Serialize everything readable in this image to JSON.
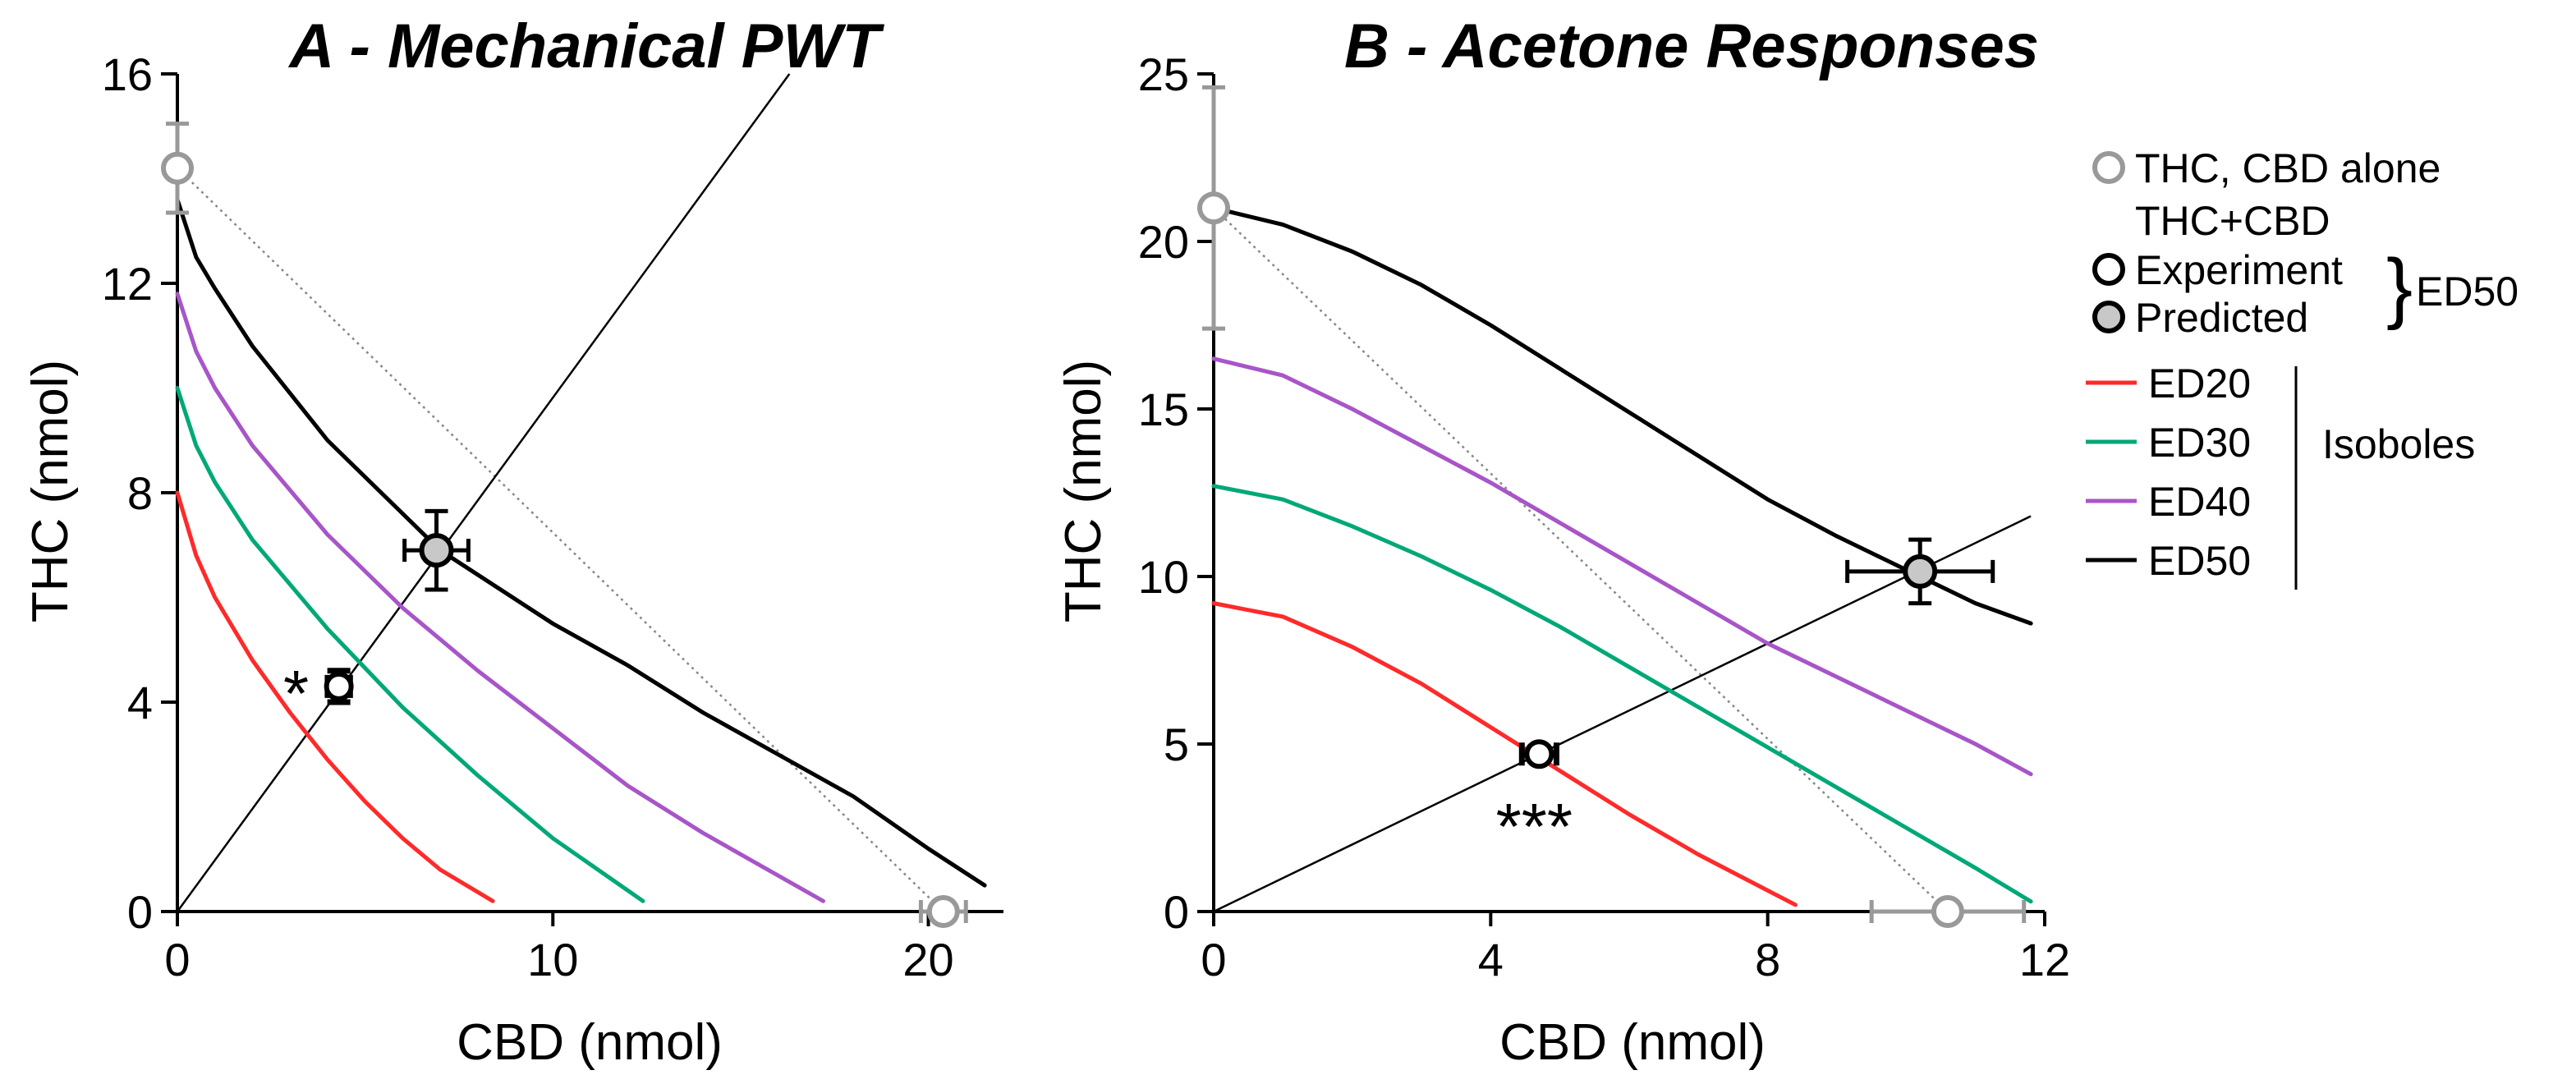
{
  "chart_data": [
    {
      "type": "line",
      "title": "A - Mechanical PWT",
      "xlabel": "CBD (nmol)",
      "ylabel": "THC (nmol)",
      "xlim": [
        0,
        22
      ],
      "ylim": [
        0,
        16
      ],
      "xticks": [
        0,
        10,
        20
      ],
      "yticks": [
        0,
        4,
        8,
        12,
        16
      ],
      "grid": false,
      "series": [
        {
          "name": "ED20",
          "color": "#ff2a2a",
          "x": [
            0,
            0.5,
            1,
            2,
            3,
            4,
            5,
            6,
            7,
            8.4
          ],
          "y": [
            8.0,
            6.8,
            6.0,
            4.8,
            3.8,
            2.9,
            2.1,
            1.4,
            0.8,
            0.2
          ]
        },
        {
          "name": "ED30",
          "color": "#00a878",
          "x": [
            0,
            0.5,
            1,
            2,
            4,
            6,
            8,
            10,
            12.4
          ],
          "y": [
            10.0,
            8.9,
            8.2,
            7.1,
            5.4,
            3.9,
            2.6,
            1.4,
            0.2
          ]
        },
        {
          "name": "ED40",
          "color": "#a855c8",
          "x": [
            0,
            0.5,
            1,
            2,
            4,
            6,
            8,
            10,
            12,
            14,
            17.2
          ],
          "y": [
            11.8,
            10.7,
            10.0,
            8.9,
            7.2,
            5.8,
            4.6,
            3.5,
            2.4,
            1.5,
            0.2
          ]
        },
        {
          "name": "ED50",
          "color": "#000000",
          "x": [
            0,
            0.5,
            1,
            2,
            4,
            6,
            7,
            10,
            12,
            14,
            16,
            18,
            20,
            21.5
          ],
          "y": [
            13.6,
            12.5,
            11.9,
            10.8,
            9.0,
            7.6,
            6.9,
            5.5,
            4.7,
            3.8,
            3.0,
            2.2,
            1.2,
            0.5
          ]
        }
      ],
      "additivity_line": {
        "x": [
          20.4,
          0
        ],
        "y": [
          0,
          14.2
        ]
      },
      "combination_line": {
        "x": [
          0,
          16.3
        ],
        "y": [
          0,
          16
        ]
      },
      "alone_points": [
        {
          "x": 0,
          "y": 14.2,
          "y_error": 0.85
        },
        {
          "x": 20.4,
          "y": 0,
          "x_error": 0.6
        }
      ],
      "predicted": {
        "x": 6.9,
        "y": 6.9,
        "x_error": 0.85,
        "y_error": 0.75
      },
      "experiment": {
        "x": 4.3,
        "y": 4.3,
        "x_error": 0.3,
        "y_error": 0.3
      },
      "annotation": "*"
    },
    {
      "type": "line",
      "title": "B - Acetone Responses",
      "xlabel": "CBD (nmol)",
      "ylabel": "THC (nmol)",
      "xlim": [
        0,
        12
      ],
      "ylim": [
        0,
        25
      ],
      "xticks": [
        0,
        4,
        8,
        12
      ],
      "yticks": [
        0,
        5,
        10,
        15,
        20,
        25
      ],
      "grid": false,
      "series": [
        {
          "name": "ED20",
          "color": "#ff2a2a",
          "x": [
            0,
            1,
            2,
            3,
            4,
            5,
            6,
            7,
            8.4
          ],
          "y": [
            9.2,
            8.8,
            7.9,
            6.8,
            5.5,
            4.2,
            2.9,
            1.7,
            0.2
          ]
        },
        {
          "name": "ED30",
          "color": "#00a878",
          "x": [
            0,
            1,
            2,
            3,
            4,
            5,
            6,
            7,
            8,
            9,
            10,
            11,
            11.8
          ],
          "y": [
            12.7,
            12.3,
            11.5,
            10.6,
            9.6,
            8.5,
            7.3,
            6.1,
            4.9,
            3.7,
            2.5,
            1.3,
            0.3
          ]
        },
        {
          "name": "ED40",
          "color": "#a855c8",
          "x": [
            0,
            1,
            2,
            3,
            4,
            5,
            6,
            7,
            8,
            9,
            10,
            11,
            11.8
          ],
          "y": [
            16.5,
            16.0,
            15.0,
            13.9,
            12.8,
            11.6,
            10.4,
            9.2,
            8.0,
            7.0,
            6.0,
            5.0,
            4.1
          ]
        },
        {
          "name": "ED50",
          "color": "#000000",
          "x": [
            0,
            1,
            2,
            3,
            4,
            5,
            6,
            7,
            8,
            9,
            10,
            11,
            11.8
          ],
          "y": [
            21.0,
            20.5,
            19.7,
            18.7,
            17.5,
            16.2,
            14.9,
            13.6,
            12.3,
            11.2,
            10.2,
            9.2,
            8.6
          ]
        }
      ],
      "additivity_line": {
        "x": [
          10.6,
          0
        ],
        "y": [
          0,
          21.0
        ]
      },
      "combination_line": {
        "x": [
          0,
          11.8
        ],
        "y": [
          0,
          11.8
        ]
      },
      "alone_points": [
        {
          "x": 0,
          "y": 21.0,
          "y_error": 3.6
        },
        {
          "x": 10.6,
          "y": 0,
          "x_error": 1.1
        }
      ],
      "predicted": {
        "x": 10.2,
        "y": 10.15,
        "x_error": 1.05,
        "y_error": 0.95
      },
      "experiment": {
        "x": 4.7,
        "y": 4.7,
        "x_error": 0.25,
        "y_error": 0.2
      },
      "annotation": "***"
    }
  ],
  "legend": {
    "alone": "THC, CBD alone",
    "combo": "THC+CBD",
    "experiment": "Experiment",
    "predicted": "Predicted",
    "ed50_group": "ED50",
    "isobole_items": [
      "ED20",
      "ED30",
      "ED40",
      "ED50"
    ],
    "isoboles_group": "Isoboles",
    "colors": {
      "ED20": "#ff2a2a",
      "ED30": "#00a878",
      "ED40": "#a855c8",
      "ED50": "#000000",
      "alone": "#999999"
    }
  }
}
